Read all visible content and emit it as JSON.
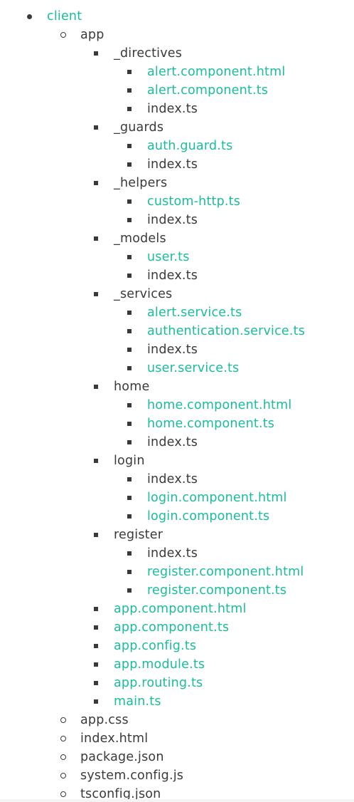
{
  "colors": {
    "link": "#1abc9c",
    "text": "#3a3a3a"
  },
  "tree": [
    {
      "label": "client",
      "level": 0,
      "link": true,
      "kind": "folder"
    },
    {
      "label": "app",
      "level": 1,
      "link": false,
      "kind": "folder"
    },
    {
      "label": "_directives",
      "level": 2,
      "link": false,
      "kind": "folder"
    },
    {
      "label": "alert.component.html",
      "level": 3,
      "link": true,
      "kind": "file"
    },
    {
      "label": "alert.component.ts",
      "level": 3,
      "link": true,
      "kind": "file"
    },
    {
      "label": "index.ts",
      "level": 3,
      "link": false,
      "kind": "file"
    },
    {
      "label": "_guards",
      "level": 2,
      "link": false,
      "kind": "folder"
    },
    {
      "label": "auth.guard.ts",
      "level": 3,
      "link": true,
      "kind": "file"
    },
    {
      "label": "index.ts",
      "level": 3,
      "link": false,
      "kind": "file"
    },
    {
      "label": "_helpers",
      "level": 2,
      "link": false,
      "kind": "folder"
    },
    {
      "label": "custom-http.ts",
      "level": 3,
      "link": true,
      "kind": "file"
    },
    {
      "label": "index.ts",
      "level": 3,
      "link": false,
      "kind": "file"
    },
    {
      "label": "_models",
      "level": 2,
      "link": false,
      "kind": "folder"
    },
    {
      "label": "user.ts",
      "level": 3,
      "link": true,
      "kind": "file"
    },
    {
      "label": "index.ts",
      "level": 3,
      "link": false,
      "kind": "file"
    },
    {
      "label": "_services",
      "level": 2,
      "link": false,
      "kind": "folder"
    },
    {
      "label": "alert.service.ts",
      "level": 3,
      "link": true,
      "kind": "file"
    },
    {
      "label": "authentication.service.ts",
      "level": 3,
      "link": true,
      "kind": "file"
    },
    {
      "label": "index.ts",
      "level": 3,
      "link": false,
      "kind": "file"
    },
    {
      "label": "user.service.ts",
      "level": 3,
      "link": true,
      "kind": "file"
    },
    {
      "label": "home",
      "level": 2,
      "link": false,
      "kind": "folder"
    },
    {
      "label": "home.component.html",
      "level": 3,
      "link": true,
      "kind": "file"
    },
    {
      "label": "home.component.ts",
      "level": 3,
      "link": true,
      "kind": "file"
    },
    {
      "label": "index.ts",
      "level": 3,
      "link": false,
      "kind": "file"
    },
    {
      "label": "login",
      "level": 2,
      "link": false,
      "kind": "folder"
    },
    {
      "label": "index.ts",
      "level": 3,
      "link": false,
      "kind": "file"
    },
    {
      "label": "login.component.html",
      "level": 3,
      "link": true,
      "kind": "file"
    },
    {
      "label": "login.component.ts",
      "level": 3,
      "link": true,
      "kind": "file"
    },
    {
      "label": "register",
      "level": 2,
      "link": false,
      "kind": "folder"
    },
    {
      "label": "index.ts",
      "level": 3,
      "link": false,
      "kind": "file"
    },
    {
      "label": "register.component.html",
      "level": 3,
      "link": true,
      "kind": "file"
    },
    {
      "label": "register.component.ts",
      "level": 3,
      "link": true,
      "kind": "file"
    },
    {
      "label": "app.component.html",
      "level": 2,
      "link": true,
      "kind": "file"
    },
    {
      "label": "app.component.ts",
      "level": 2,
      "link": true,
      "kind": "file"
    },
    {
      "label": "app.config.ts",
      "level": 2,
      "link": true,
      "kind": "file"
    },
    {
      "label": "app.module.ts",
      "level": 2,
      "link": true,
      "kind": "file"
    },
    {
      "label": "app.routing.ts",
      "level": 2,
      "link": true,
      "kind": "file"
    },
    {
      "label": "main.ts",
      "level": 2,
      "link": true,
      "kind": "file"
    },
    {
      "label": "app.css",
      "level": 1,
      "link": false,
      "kind": "file"
    },
    {
      "label": "index.html",
      "level": 1,
      "link": false,
      "kind": "file"
    },
    {
      "label": "package.json",
      "level": 1,
      "link": false,
      "kind": "file"
    },
    {
      "label": "system.config.js",
      "level": 1,
      "link": false,
      "kind": "file"
    },
    {
      "label": "tsconfig.json",
      "level": 1,
      "link": false,
      "kind": "file"
    }
  ]
}
